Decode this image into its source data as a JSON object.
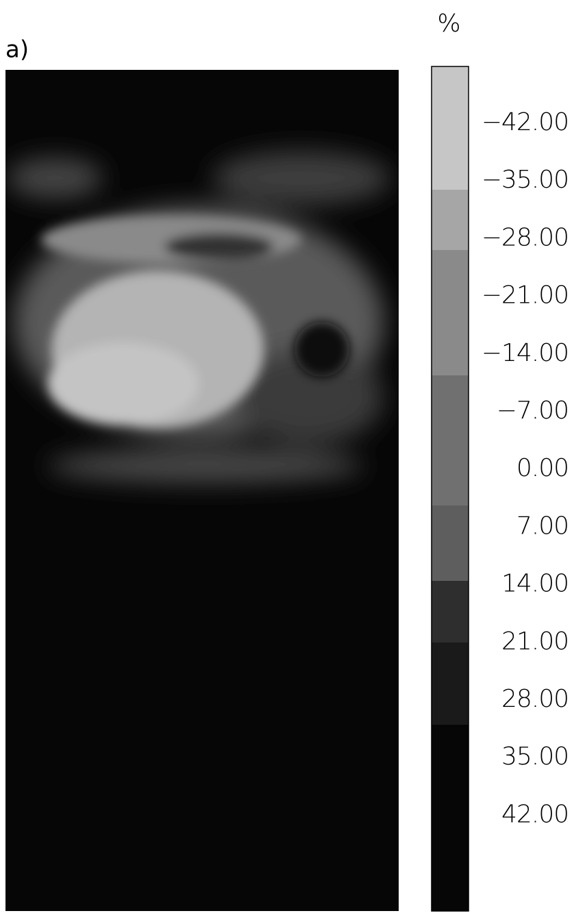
{
  "panel_label": "a)",
  "colorbar": {
    "unit": "%",
    "labels": [
      "−42.00",
      "−35.00",
      "−28.00",
      "−21.00",
      "−14.00",
      "−7.00",
      "0.00",
      "7.00",
      "14.00",
      "21.00",
      "28.00",
      "35.00",
      "42.00"
    ]
  }
}
